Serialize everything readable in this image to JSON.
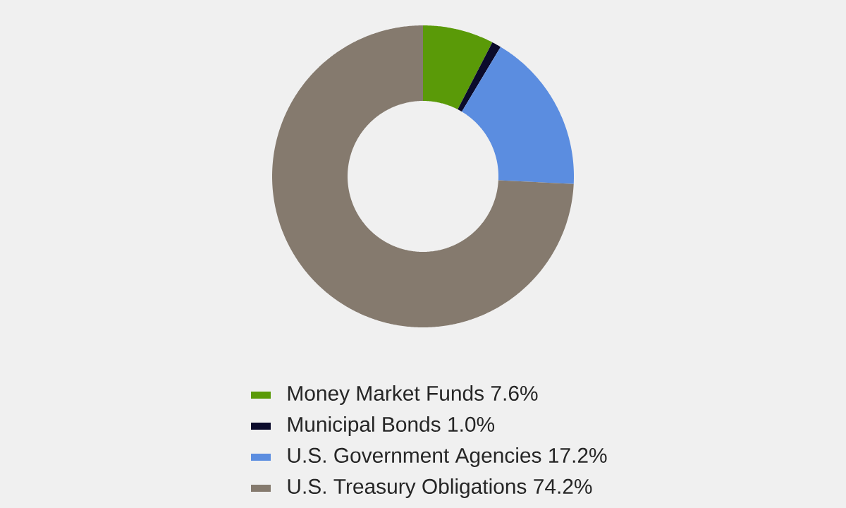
{
  "chart_data": {
    "type": "donut",
    "categories": [
      "Money Market Funds",
      "Municipal Bonds",
      "U.S. Government Agencies",
      "U.S. Treasury Obligations"
    ],
    "values": [
      7.6,
      1.0,
      17.2,
      74.2
    ],
    "value_labels": [
      "7.6%",
      "1.0%",
      "17.2%",
      "74.2%"
    ],
    "colors": [
      "#5a9a08",
      "#0b0b2b",
      "#5b8de0",
      "#857a6e"
    ],
    "legend": "bottom"
  }
}
